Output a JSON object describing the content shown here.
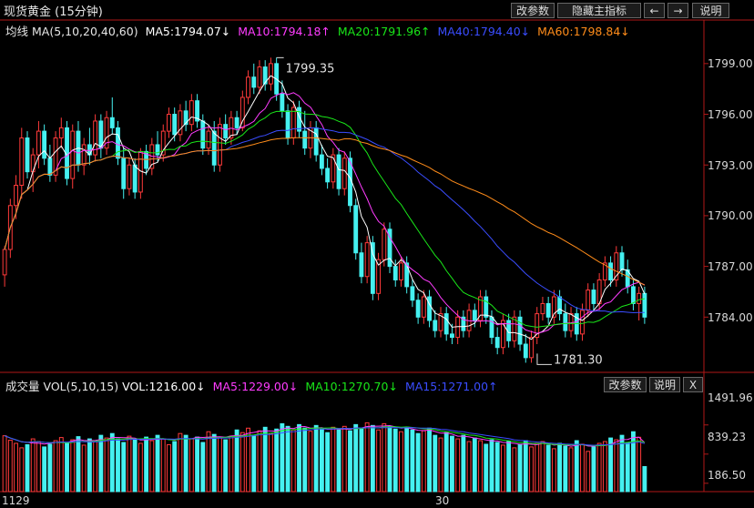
{
  "header": {
    "title": "现货黄金 (15分钟)",
    "buttons": [
      "改参数",
      "隐藏主指标",
      "←",
      "→",
      "说明"
    ]
  },
  "main_legend": {
    "label": "均线",
    "params": "MA(5,10,20,40,60)",
    "items": [
      {
        "text": "MA5:1794.07↓",
        "color": "#ffffff"
      },
      {
        "text": "MA10:1794.18↑",
        "color": "#ff3cff"
      },
      {
        "text": "MA20:1791.96↑",
        "color": "#19e619"
      },
      {
        "text": "MA40:1794.40↓",
        "color": "#3a4dff"
      },
      {
        "text": "MA60:1798.84↓",
        "color": "#ff8c1a"
      }
    ]
  },
  "vol_legend": {
    "label": "成交量",
    "params": "VOL(5,10,15)",
    "items": [
      {
        "text": "VOL:1216.00↓",
        "color": "#ffffff"
      },
      {
        "text": "MA5:1229.00↓",
        "color": "#ff3cff"
      },
      {
        "text": "MA10:1270.70↓",
        "color": "#19e619"
      },
      {
        "text": "MA15:1271.00↑",
        "color": "#3a4dff"
      }
    ],
    "buttons": [
      "改参数",
      "说明",
      "X"
    ]
  },
  "colors": {
    "up": "#ff3a3a",
    "down": "#45f0f0",
    "frame": "#b01818"
  },
  "chart_data": [
    {
      "type": "candlestick",
      "title": "现货黄金 (15分钟)",
      "ylim": [
        1781.0,
        1800.5
      ],
      "y_ticks": [
        "1799.00",
        "1796.00",
        "1793.00",
        "1790.00",
        "1787.00",
        "1784.00"
      ],
      "x_tick_labels": [
        "1129",
        "30"
      ],
      "annotations": [
        {
          "text": "1799.35",
          "x_index": 48,
          "value": 1799.35
        },
        {
          "text": "1781.30",
          "x_index": 95,
          "value": 1781.3
        }
      ],
      "ohlc": [
        [
          1786.5,
          1788.2,
          1785.8,
          1788.0
        ],
        [
          1788.0,
          1791.0,
          1787.5,
          1790.6
        ],
        [
          1790.6,
          1792.4,
          1789.8,
          1791.8
        ],
        [
          1791.8,
          1795.2,
          1791.0,
          1794.6
        ],
        [
          1794.6,
          1795.0,
          1792.2,
          1792.6
        ],
        [
          1792.6,
          1794.0,
          1791.4,
          1793.6
        ],
        [
          1793.6,
          1795.6,
          1792.8,
          1795.0
        ],
        [
          1795.0,
          1795.4,
          1793.0,
          1793.4
        ],
        [
          1793.4,
          1794.2,
          1792.0,
          1792.4
        ],
        [
          1792.4,
          1795.0,
          1792.0,
          1794.6
        ],
        [
          1794.6,
          1795.8,
          1794.0,
          1795.2
        ],
        [
          1795.2,
          1795.6,
          1791.8,
          1792.2
        ],
        [
          1792.2,
          1795.4,
          1791.6,
          1795.0
        ],
        [
          1795.0,
          1795.6,
          1792.6,
          1793.0
        ],
        [
          1793.0,
          1794.6,
          1792.4,
          1794.2
        ],
        [
          1794.2,
          1795.2,
          1793.0,
          1793.6
        ],
        [
          1793.6,
          1796.0,
          1793.2,
          1795.6
        ],
        [
          1795.6,
          1796.0,
          1793.4,
          1794.0
        ],
        [
          1794.0,
          1796.2,
          1793.6,
          1795.8
        ],
        [
          1795.8,
          1797.0,
          1794.8,
          1795.2
        ],
        [
          1795.2,
          1795.6,
          1793.0,
          1793.4
        ],
        [
          1793.4,
          1794.0,
          1791.0,
          1791.6
        ],
        [
          1791.6,
          1793.4,
          1791.2,
          1793.0
        ],
        [
          1793.0,
          1793.4,
          1791.0,
          1791.4
        ],
        [
          1791.4,
          1794.0,
          1791.0,
          1793.8
        ],
        [
          1793.8,
          1794.2,
          1792.4,
          1792.8
        ],
        [
          1792.8,
          1794.6,
          1792.4,
          1794.2
        ],
        [
          1794.2,
          1795.0,
          1793.2,
          1793.6
        ],
        [
          1793.6,
          1795.4,
          1793.2,
          1795.0
        ],
        [
          1795.0,
          1796.4,
          1794.6,
          1796.0
        ],
        [
          1796.0,
          1796.4,
          1794.4,
          1794.8
        ],
        [
          1794.8,
          1796.6,
          1794.4,
          1796.2
        ],
        [
          1796.2,
          1796.8,
          1795.0,
          1795.4
        ],
        [
          1795.4,
          1797.2,
          1795.0,
          1796.8
        ],
        [
          1796.8,
          1797.2,
          1795.2,
          1795.6
        ],
        [
          1795.6,
          1796.0,
          1793.6,
          1794.0
        ],
        [
          1794.0,
          1795.4,
          1793.6,
          1795.0
        ],
        [
          1795.0,
          1795.6,
          1792.6,
          1793.0
        ],
        [
          1793.0,
          1795.8,
          1792.6,
          1795.4
        ],
        [
          1795.4,
          1796.0,
          1794.2,
          1794.6
        ],
        [
          1794.6,
          1796.2,
          1794.2,
          1795.8
        ],
        [
          1795.8,
          1796.2,
          1794.8,
          1795.2
        ],
        [
          1795.2,
          1797.4,
          1795.0,
          1797.0
        ],
        [
          1797.0,
          1798.6,
          1796.6,
          1798.2
        ],
        [
          1798.2,
          1799.0,
          1797.2,
          1797.6
        ],
        [
          1797.6,
          1799.2,
          1797.2,
          1798.8
        ],
        [
          1798.8,
          1799.2,
          1797.4,
          1797.8
        ],
        [
          1797.8,
          1799.35,
          1797.4,
          1799.0
        ],
        [
          1799.0,
          1799.35,
          1796.8,
          1797.2
        ],
        [
          1797.2,
          1798.0,
          1795.8,
          1796.2
        ],
        [
          1796.2,
          1796.6,
          1794.2,
          1794.6
        ],
        [
          1794.6,
          1796.8,
          1794.2,
          1796.4
        ],
        [
          1796.4,
          1796.8,
          1794.6,
          1795.0
        ],
        [
          1795.0,
          1796.2,
          1793.6,
          1794.0
        ],
        [
          1794.0,
          1795.6,
          1793.4,
          1795.2
        ],
        [
          1795.2,
          1795.6,
          1793.2,
          1793.6
        ],
        [
          1793.6,
          1794.2,
          1792.4,
          1792.8
        ],
        [
          1792.8,
          1793.4,
          1791.6,
          1792.0
        ],
        [
          1792.0,
          1794.0,
          1791.6,
          1793.6
        ],
        [
          1793.6,
          1794.0,
          1791.2,
          1791.6
        ],
        [
          1791.6,
          1793.8,
          1791.2,
          1793.4
        ],
        [
          1793.4,
          1793.8,
          1790.2,
          1790.6
        ],
        [
          1790.6,
          1791.0,
          1787.4,
          1787.8
        ],
        [
          1787.8,
          1788.4,
          1786.0,
          1786.4
        ],
        [
          1786.4,
          1788.8,
          1786.0,
          1788.4
        ],
        [
          1788.4,
          1788.8,
          1785.0,
          1785.4
        ],
        [
          1785.4,
          1787.8,
          1785.0,
          1787.4
        ],
        [
          1787.4,
          1789.6,
          1787.0,
          1789.2
        ],
        [
          1789.2,
          1789.6,
          1786.6,
          1787.0
        ],
        [
          1787.0,
          1787.4,
          1785.8,
          1786.2
        ],
        [
          1786.2,
          1787.6,
          1785.8,
          1787.2
        ],
        [
          1787.2,
          1787.6,
          1785.4,
          1785.8
        ],
        [
          1785.8,
          1786.2,
          1784.6,
          1785.0
        ],
        [
          1785.0,
          1785.4,
          1783.6,
          1784.0
        ],
        [
          1784.0,
          1785.6,
          1783.6,
          1785.2
        ],
        [
          1785.2,
          1785.6,
          1783.4,
          1783.8
        ],
        [
          1783.8,
          1784.4,
          1782.8,
          1783.2
        ],
        [
          1783.2,
          1784.6,
          1782.8,
          1784.2
        ],
        [
          1784.2,
          1784.6,
          1782.6,
          1783.0
        ],
        [
          1783.0,
          1783.6,
          1782.4,
          1782.8
        ],
        [
          1782.8,
          1784.4,
          1782.4,
          1784.0
        ],
        [
          1784.0,
          1784.4,
          1782.8,
          1783.2
        ],
        [
          1783.2,
          1784.8,
          1782.8,
          1784.4
        ],
        [
          1784.4,
          1784.8,
          1783.4,
          1783.8
        ],
        [
          1783.8,
          1785.6,
          1783.4,
          1785.2
        ],
        [
          1785.2,
          1785.6,
          1783.6,
          1784.0
        ],
        [
          1784.0,
          1784.4,
          1782.4,
          1782.8
        ],
        [
          1782.8,
          1783.4,
          1781.8,
          1782.2
        ],
        [
          1782.2,
          1784.2,
          1781.8,
          1783.8
        ],
        [
          1783.8,
          1784.2,
          1782.2,
          1782.6
        ],
        [
          1782.6,
          1784.4,
          1782.2,
          1784.0
        ],
        [
          1784.0,
          1784.4,
          1782.0,
          1782.4
        ],
        [
          1782.4,
          1783.0,
          1781.3,
          1781.6
        ],
        [
          1781.6,
          1783.2,
          1781.3,
          1782.8
        ],
        [
          1782.8,
          1784.6,
          1782.4,
          1784.2
        ],
        [
          1784.2,
          1785.2,
          1783.8,
          1784.8
        ],
        [
          1784.8,
          1785.2,
          1783.6,
          1784.0
        ],
        [
          1784.0,
          1785.6,
          1783.6,
          1785.2
        ],
        [
          1785.2,
          1785.6,
          1783.8,
          1784.2
        ],
        [
          1784.2,
          1784.8,
          1782.8,
          1783.2
        ],
        [
          1783.2,
          1784.6,
          1782.8,
          1784.2
        ],
        [
          1784.2,
          1784.6,
          1782.6,
          1783.0
        ],
        [
          1783.0,
          1784.8,
          1782.6,
          1784.4
        ],
        [
          1784.4,
          1786.0,
          1784.0,
          1785.6
        ],
        [
          1785.6,
          1786.0,
          1784.4,
          1784.8
        ],
        [
          1784.8,
          1786.6,
          1784.4,
          1786.2
        ],
        [
          1786.2,
          1787.6,
          1785.8,
          1787.2
        ],
        [
          1787.2,
          1787.6,
          1785.8,
          1786.2
        ],
        [
          1786.2,
          1788.2,
          1785.8,
          1787.8
        ],
        [
          1787.8,
          1788.2,
          1786.4,
          1786.8
        ],
        [
          1786.8,
          1787.4,
          1785.4,
          1785.8
        ],
        [
          1785.8,
          1786.2,
          1784.4,
          1784.8
        ],
        [
          1784.8,
          1785.8,
          1783.8,
          1785.4
        ],
        [
          1785.4,
          1785.8,
          1783.6,
          1784.0
        ]
      ],
      "series_ma": [
        {
          "name": "MA5",
          "color": "#ffffff",
          "period": 5
        },
        {
          "name": "MA10",
          "color": "#ff3cff",
          "period": 10
        },
        {
          "name": "MA20",
          "color": "#19e619",
          "period": 20
        },
        {
          "name": "MA40",
          "color": "#3a4dff",
          "period": 40
        },
        {
          "name": "MA60",
          "color": "#ff8c1a",
          "period": 60
        }
      ]
    },
    {
      "type": "bar",
      "title": "成交量",
      "ylim": [
        0,
        2200
      ],
      "y_ticks": [
        "1491.96",
        "839.23",
        "186.50"
      ],
      "volume": [
        1250,
        1150,
        1080,
        980,
        1050,
        1180,
        1120,
        1000,
        1060,
        1140,
        1210,
        1090,
        1160,
        1230,
        1040,
        1180,
        1120,
        1260,
        1200,
        1300,
        1180,
        1100,
        1240,
        1160,
        1080,
        1220,
        1140,
        1260,
        1180,
        1050,
        1120,
        1300,
        1260,
        1180,
        1220,
        1100,
        1340,
        1280,
        1200,
        1160,
        1240,
        1380,
        1320,
        1420,
        1260,
        1360,
        1440,
        1300,
        1400,
        1520,
        1460,
        1380,
        1500,
        1420,
        1350,
        1480,
        1400,
        1320,
        1440,
        1380,
        1460,
        1360,
        1500,
        1420,
        1540,
        1480,
        1380,
        1520,
        1460,
        1400,
        1340,
        1440,
        1380,
        1300,
        1360,
        1420,
        1260,
        1200,
        1320,
        1240,
        1180,
        1260,
        1120,
        1200,
        1140,
        1060,
        1160,
        1100,
        1040,
        1120,
        980,
        1060,
        1140,
        1000,
        1080,
        1120,
        1040,
        960,
        1080,
        1020,
        980,
        1140,
        1060,
        900,
        1000,
        1080,
        1120,
        1200,
        1160,
        1260,
        1100,
        1340,
        1216,
        560
      ],
      "series_ma": [
        {
          "name": "MA5",
          "color": "#ff3cff",
          "period": 5
        },
        {
          "name": "MA10",
          "color": "#19e619",
          "period": 10
        },
        {
          "name": "MA15",
          "color": "#3a4dff",
          "period": 15
        }
      ]
    }
  ]
}
